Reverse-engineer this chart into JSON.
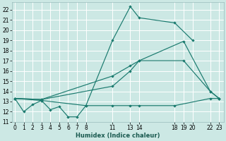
{
  "xlabel": "Humidex (Indice chaleur)",
  "background_color": "#cce8e4",
  "grid_color": "#ffffff",
  "line_color": "#1a7a6e",
  "s1_x": [
    0,
    1,
    2,
    3,
    4,
    5,
    6,
    7,
    8,
    11,
    13,
    14,
    18,
    20
  ],
  "s1_y": [
    13.3,
    12.0,
    12.7,
    13.1,
    12.2,
    12.5,
    11.5,
    11.5,
    12.6,
    19.0,
    22.3,
    21.2,
    20.7,
    19.0
  ],
  "s2_x": [
    0,
    3,
    11,
    13,
    14,
    19,
    22,
    23
  ],
  "s2_y": [
    13.3,
    13.2,
    15.5,
    16.5,
    17.0,
    17.0,
    14.0,
    13.3
  ],
  "s3_x": [
    0,
    3,
    11,
    13,
    14,
    19,
    22,
    23
  ],
  "s3_y": [
    13.3,
    13.2,
    14.5,
    16.0,
    17.0,
    18.9,
    14.0,
    13.3
  ],
  "s4_x": [
    0,
    3,
    8,
    11,
    13,
    14,
    18,
    22,
    23
  ],
  "s4_y": [
    13.3,
    13.1,
    12.6,
    12.6,
    12.6,
    12.6,
    12.6,
    13.3,
    13.3
  ],
  "xlim": [
    -0.3,
    23.5
  ],
  "ylim": [
    11,
    22.7
  ],
  "yticks": [
    11,
    12,
    13,
    14,
    15,
    16,
    17,
    18,
    19,
    20,
    21,
    22
  ],
  "xtick_pos": [
    0,
    1,
    2,
    3,
    4,
    5,
    6,
    7,
    8,
    11,
    13,
    14,
    18,
    19,
    20,
    22,
    23
  ],
  "xtick_labels": [
    "0",
    "1",
    "2",
    "3",
    "4",
    "5",
    "6",
    "7",
    "8",
    "11",
    "13",
    "14",
    "18",
    "19",
    "20",
    "22",
    "23"
  ],
  "ylabel_fontsize": 6.0,
  "tick_fontsize": 5.5
}
